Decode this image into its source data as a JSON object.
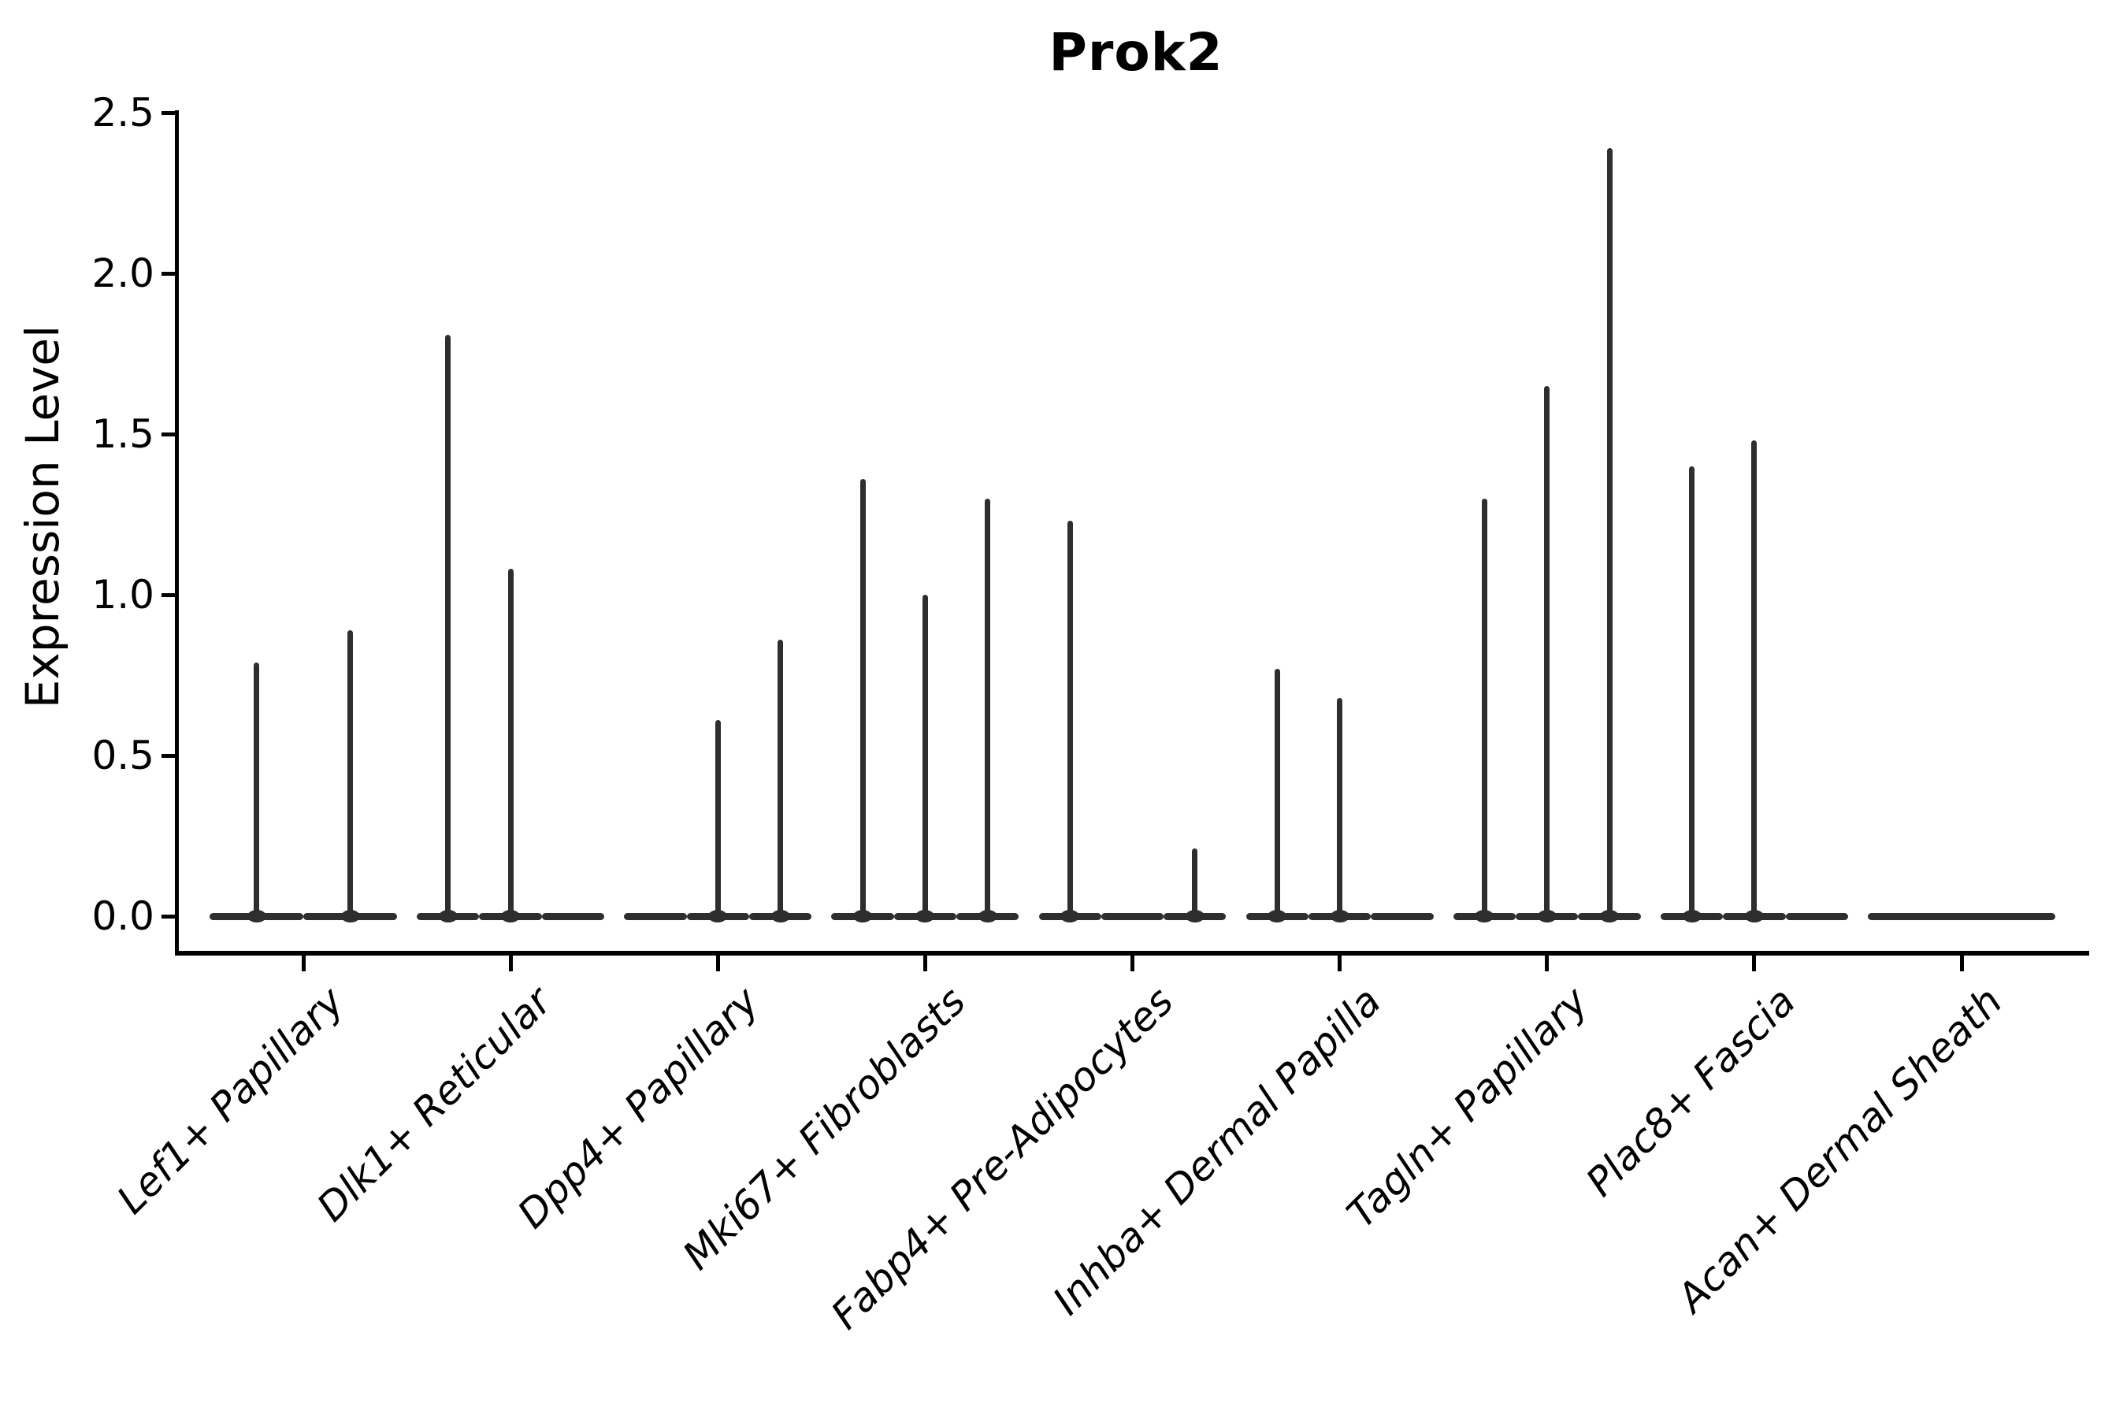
{
  "chart_data": {
    "type": "violin",
    "title": "Prok2",
    "ylabel": "Expression Level",
    "xlabel": "",
    "ylim": [
      0,
      2.5
    ],
    "grid": false,
    "legend": false,
    "ytick_values": [
      0.0,
      0.5,
      1.0,
      1.5,
      2.0,
      2.5
    ],
    "ytick_labels": [
      "0.0",
      "0.5",
      "1.0",
      "1.5",
      "2.0",
      "2.5"
    ],
    "categories": [
      "Lef1+ Papillary",
      "Dlk1+ Reticular",
      "Dpp4+ Papillary",
      "Mki67+ Fibroblasts",
      "Fabp4+ Pre-Adipocytes",
      "Inhba+ Dermal Papilla",
      "Tagln+ Papillary",
      "Plac8+ Fascia",
      "Acan+ Dermal Sheath"
    ],
    "groups": [
      {
        "category": "Lef1+ Papillary",
        "violin_max_values": [
          0.79,
          0.89
        ]
      },
      {
        "category": "Dlk1+ Reticular",
        "violin_max_values": [
          1.81,
          1.08,
          0
        ]
      },
      {
        "category": "Dpp4+ Papillary",
        "violin_max_values": [
          0,
          0.61,
          0.86
        ]
      },
      {
        "category": "Mki67+ Fibroblasts",
        "violin_max_values": [
          1.36,
          1.0,
          1.3
        ]
      },
      {
        "category": "Fabp4+ Pre-Adipocytes",
        "violin_max_values": [
          1.23,
          0,
          0.21
        ]
      },
      {
        "category": "Inhba+ Dermal Papilla",
        "violin_max_values": [
          0.77,
          0.68,
          0
        ]
      },
      {
        "category": "Tagln+ Papillary",
        "violin_max_values": [
          1.3,
          1.65,
          2.39
        ]
      },
      {
        "category": "Plac8+ Fascia",
        "violin_max_values": [
          1.4,
          1.48,
          0
        ]
      },
      {
        "category": "Acan+ Dermal Sheath",
        "violin_max_values": [
          0
        ]
      }
    ],
    "colors": {
      "violin_line": "#2e2e2e",
      "axis": "#000000",
      "background": "#ffffff",
      "text": "#000000"
    }
  }
}
